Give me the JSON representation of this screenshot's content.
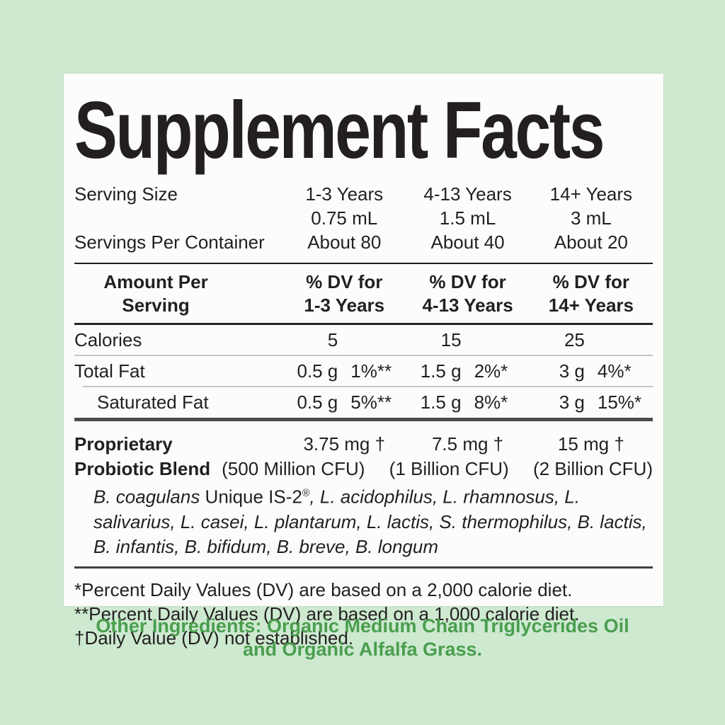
{
  "colors": {
    "page_background": "#cde9d0",
    "label_background": "#fcfdfb",
    "text": "#231f20",
    "other_ingredients_green": "#4a9e4e"
  },
  "label": {
    "title": "Supplement Facts",
    "serving": {
      "serving_size_label": "Serving Size",
      "servings_per_container_label": "Servings Per Container",
      "columns": [
        {
          "age_group": "1-3 Years",
          "volume": "0.75 mL",
          "servings": "About 80"
        },
        {
          "age_group": "4-13 Years",
          "volume": "1.5 mL",
          "servings": "About 40"
        },
        {
          "age_group": "14+ Years",
          "volume": "3 mL",
          "servings": "About 20"
        }
      ]
    },
    "table_header": {
      "amount_line1": "Amount Per",
      "amount_line2": "Serving",
      "dv_line1": "% DV for",
      "dv_columns": [
        "1-3 Years",
        "4-13 Years",
        "14+ Years"
      ]
    },
    "nutrient_rows": [
      {
        "name": "Calories",
        "cells": [
          {
            "amount": "5",
            "dv": ""
          },
          {
            "amount": "15",
            "dv": ""
          },
          {
            "amount": "25",
            "dv": ""
          }
        ]
      },
      {
        "name": "Total Fat",
        "cells": [
          {
            "amount": "0.5 g",
            "dv": "1%**"
          },
          {
            "amount": "1.5 g",
            "dv": "2%*"
          },
          {
            "amount": "3 g",
            "dv": "4%*"
          }
        ]
      },
      {
        "name": "Saturated Fat",
        "cells": [
          {
            "amount": "0.5 g",
            "dv": "5%**"
          },
          {
            "amount": "1.5 g",
            "dv": "8%*"
          },
          {
            "amount": "3 g",
            "dv": "15%*"
          }
        ]
      }
    ],
    "blend": {
      "name_line1": "Proprietary",
      "name_line2": "Probiotic Blend",
      "amounts": [
        "3.75 mg †",
        "7.5 mg †",
        "15 mg †"
      ],
      "cfu_counts": [
        "(500 Million CFU)",
        "(1 Billion CFU)",
        "(2 Billion CFU)"
      ],
      "species_italic_lead": "B. coagulans",
      "species_upright": " Unique IS-2",
      "species_trademark": "®",
      "species_italic_rest": ", L. acidophilus, L. rhamnosus, L. salivarius, L. casei, L. plantarum, L. lactis, S. thermophilus, B. lactis, B. infantis, B. bifidum, B. breve, B. longum"
    },
    "footnotes": [
      "*Percent Daily Values (DV) are based on a 2,000 calorie diet.",
      "**Percent Daily Values (DV) are based on a 1,000 calorie diet.",
      "†Daily Value (DV) not established."
    ]
  },
  "other_ingredients": {
    "line1": "Other Ingredients: Organic Medium Chain Triglycerides Oil",
    "line2": "and Organic Alfalfa Grass."
  }
}
